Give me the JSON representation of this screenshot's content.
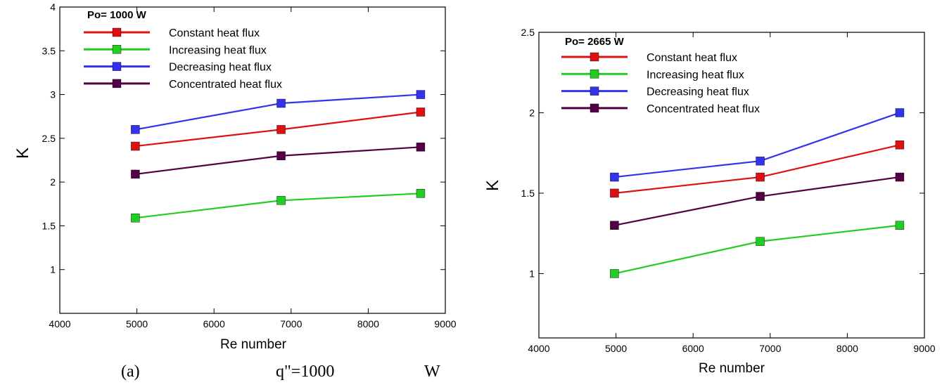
{
  "chart_data": [
    {
      "type": "line",
      "legend_title": "Po= 1000 W",
      "xlabel": "Re number",
      "ylabel": "K",
      "xlim": [
        4000,
        9000
      ],
      "ylim": [
        0.5,
        4
      ],
      "xticks": [
        "4000",
        "5000",
        "6000",
        "7000",
        "8000",
        "9000"
      ],
      "yticks": [
        "1",
        "1.5",
        "2",
        "2.5",
        "3",
        "3.5",
        "4"
      ],
      "x": [
        4980,
        6870,
        8680
      ],
      "legend_position": "top-left",
      "grid": false,
      "series": [
        {
          "name": "Constant heat flux",
          "color": "#dd1111",
          "values": [
            2.41,
            2.6,
            2.8
          ]
        },
        {
          "name": "Increasing heat flux",
          "color": "#22cc22",
          "values": [
            1.59,
            1.79,
            1.87
          ]
        },
        {
          "name": "Decreasing heat flux",
          "color": "#3333ee",
          "values": [
            2.6,
            2.9,
            3.0
          ]
        },
        {
          "name": "Concentrated heat flux",
          "color": "#550044",
          "values": [
            2.09,
            2.3,
            2.4
          ]
        }
      ]
    },
    {
      "type": "line",
      "legend_title": "Po= 2665 W",
      "xlabel": "Re number",
      "ylabel": "K",
      "xlim": [
        4000,
        9000
      ],
      "ylim": [
        0.6,
        2.5
      ],
      "xticks": [
        "4000",
        "5000",
        "6000",
        "7000",
        "8000",
        "9000"
      ],
      "yticks": [
        "1",
        "1.5",
        "2",
        "2.5"
      ],
      "x": [
        4980,
        6870,
        8680
      ],
      "legend_position": "top-left",
      "grid": false,
      "series": [
        {
          "name": "Constant heat flux",
          "color": "#dd1111",
          "values": [
            1.5,
            1.6,
            1.8
          ]
        },
        {
          "name": "Increasing heat flux",
          "color": "#22cc22",
          "values": [
            1.0,
            1.2,
            1.3
          ]
        },
        {
          "name": "Decreasing heat flux",
          "color": "#3333ee",
          "values": [
            1.6,
            1.7,
            2.0
          ]
        },
        {
          "name": "Concentrated heat flux",
          "color": "#550044",
          "values": [
            1.3,
            1.48,
            1.6
          ]
        }
      ]
    }
  ],
  "caption": {
    "label": "(a)",
    "formula": "q\"=1000",
    "unit": "W"
  }
}
